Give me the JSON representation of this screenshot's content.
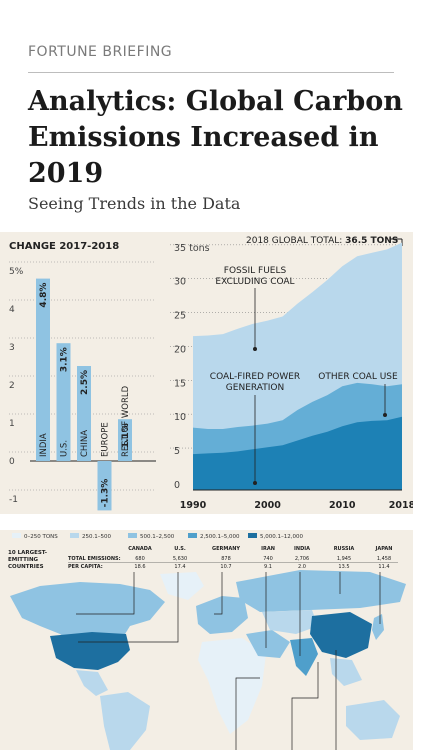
{
  "article": {
    "kicker": "FORTUNE BRIEFING",
    "title": "Analytics: Global Carbon Emissions Increased in 2019",
    "subtitle": "Seeing Trends in the Data"
  },
  "chart_data": [
    {
      "type": "bar",
      "title": "CHANGE 2017-2018",
      "categories": [
        "INDIA",
        "U.S.",
        "CHINA",
        "EUROPE",
        "REST OF WORLD"
      ],
      "values": [
        4.8,
        3.1,
        2.5,
        -1.3,
        1.1
      ],
      "value_labels": [
        "4.8%",
        "3.1%",
        "2.5%",
        "-1.3%",
        "1.1%"
      ],
      "y_ticks": [
        "5%",
        "4",
        "3",
        "2",
        "1",
        "0",
        "-1"
      ],
      "ylim": [
        -1.5,
        5.2
      ],
      "color": "#8fc3e2"
    },
    {
      "type": "area",
      "title": "2018 GLOBAL TOTAL:",
      "title_value": "36.5 TONS",
      "x": [
        1990,
        1992,
        1994,
        1996,
        1998,
        2000,
        2002,
        2004,
        2006,
        2008,
        2010,
        2012,
        2014,
        2016,
        2018
      ],
      "series": [
        {
          "name": "FOSSIL FUELS EXCLUDING COAL",
          "values": [
            22.7,
            22.8,
            23.0,
            23.8,
            24.5,
            25.0,
            25.6,
            27.5,
            29.2,
            31.0,
            33.0,
            34.5,
            35.0,
            35.5,
            36.5
          ],
          "color": "#b9d8ec"
        },
        {
          "name": "OTHER COAL USE",
          "values": [
            9.2,
            9.0,
            9.0,
            9.3,
            9.5,
            9.8,
            10.3,
            11.8,
            13.0,
            14.0,
            15.3,
            15.8,
            15.6,
            15.3,
            15.6
          ],
          "color": "#64aed6"
        },
        {
          "name": "COAL-FIRED POWER GENERATION",
          "values": [
            5.3,
            5.4,
            5.5,
            5.7,
            6.0,
            6.3,
            6.6,
            7.3,
            8.0,
            8.6,
            9.4,
            10.0,
            10.2,
            10.3,
            10.8
          ],
          "color": "#1d81b5"
        }
      ],
      "y_ticks": [
        "35 tons",
        "30",
        "25",
        "20",
        "15",
        "10",
        "5",
        "0"
      ],
      "x_ticks": [
        "1990",
        "2000",
        "2010",
        "2018"
      ],
      "ylim": [
        0,
        36
      ]
    }
  ],
  "map": {
    "legend": [
      "0–250 TONS",
      "250.1–500",
      "500.1–2,500",
      "2,500.1–5,000",
      "5,000.1–12,000"
    ],
    "legend_colors": [
      "#e6f1f8",
      "#b9d8ec",
      "#8fc3e2",
      "#4f9fcb",
      "#1d6fa0"
    ],
    "side_title": "10 LARGEST-EMITTING COUNTRIES",
    "row_total": "TOTAL EMISSIONS:",
    "row_capita": "PER CAPITA:",
    "countries": [
      {
        "name": "CANADA",
        "total": "680",
        "capita": "18.6"
      },
      {
        "name": "U.S.",
        "total": "5,630",
        "capita": "17.4"
      },
      {
        "name": "GERMANY",
        "total": "878",
        "capita": "10.7"
      },
      {
        "name": "IRAN",
        "total": "740",
        "capita": "9.1"
      },
      {
        "name": "INDIA",
        "total": "2,706",
        "capita": "2.0"
      },
      {
        "name": "RUSSIA",
        "total": "1,945",
        "capita": "13.5"
      },
      {
        "name": "JAPAN",
        "total": "1,458",
        "capita": "11.4"
      }
    ]
  }
}
